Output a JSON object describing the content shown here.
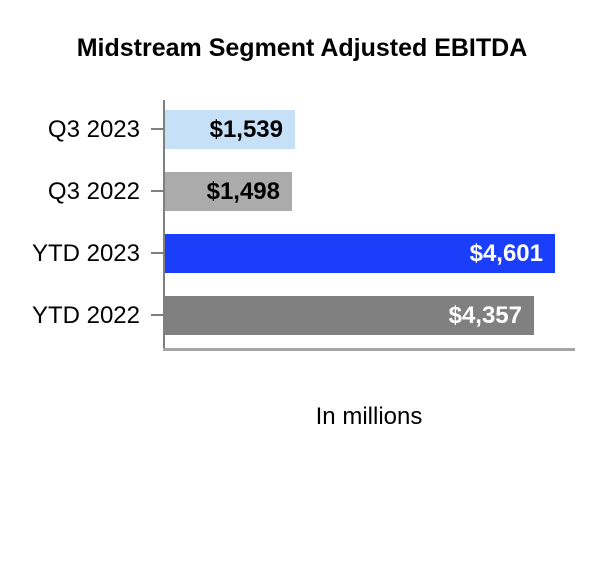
{
  "title": "Midstream Segment Adjusted EBITDA",
  "note": "In millions",
  "colors": {
    "axis": "#7F7F7F",
    "baseline": "#A6A6A6",
    "title_text": "#000000",
    "label_text": "#000000"
  },
  "chart_data": {
    "type": "bar",
    "orientation": "horizontal",
    "title": "Midstream Segment Adjusted EBITDA",
    "xlabel": "In millions",
    "categories": [
      "Q3 2023",
      "Q3 2022",
      "YTD 2023",
      "YTD 2022"
    ],
    "values": [
      1539,
      1498,
      4601,
      4357
    ],
    "value_labels": [
      "$1,539",
      "$1,498",
      "$4,601",
      "$4,357"
    ],
    "bar_colors": [
      "#C5E0F7",
      "#ABABAB",
      "#1A3EFA",
      "#808080"
    ],
    "value_label_colors": [
      "#000000",
      "#000000",
      "#FFFFFF",
      "#FFFFFF"
    ],
    "xlim": [
      0,
      4850
    ],
    "grid": false,
    "legend": false,
    "value_labels_position": "inside-end"
  }
}
